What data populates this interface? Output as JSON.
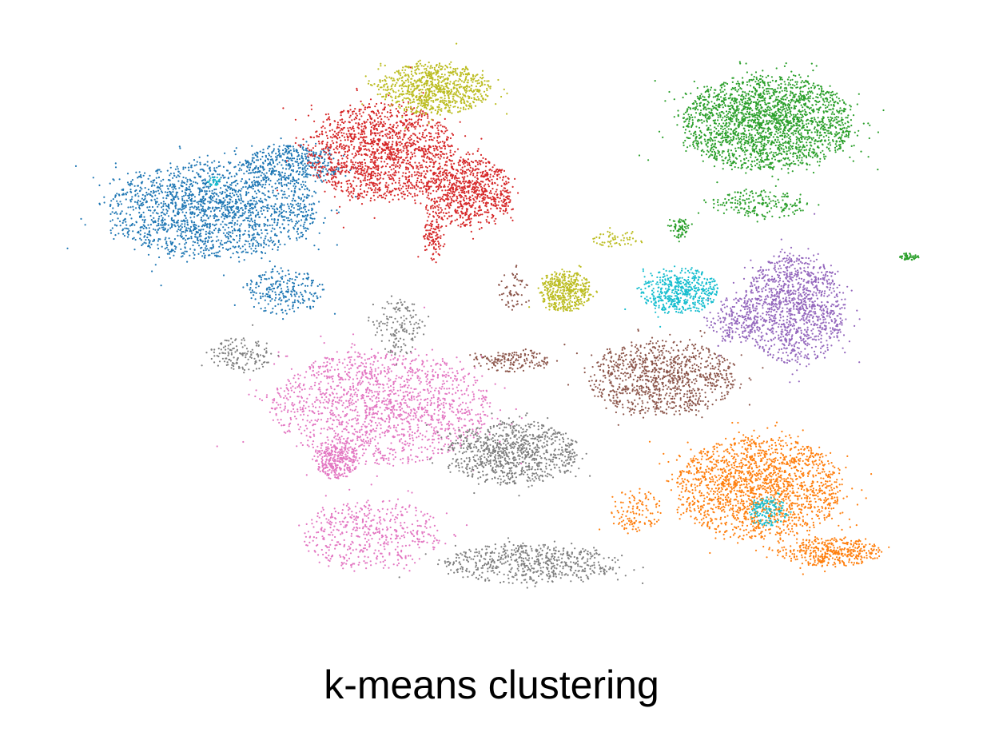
{
  "chart_data": {
    "type": "scatter",
    "title": "k-means clustering",
    "xlabel": "",
    "ylabel": "",
    "axes_visible": false,
    "grid": false,
    "legend": "none",
    "point_size": "very small",
    "xlim": [
      0,
      100
    ],
    "ylim": [
      0,
      100
    ],
    "series": [
      {
        "color": "#1f77b4",
        "regions": [
          {
            "cx": 18,
            "cy": 72,
            "rx": 12.0,
            "ry": 8.5,
            "n": 1900
          },
          {
            "cx": 27,
            "cy": 80,
            "rx": 5.5,
            "ry": 3.5,
            "n": 380
          },
          {
            "cx": 26,
            "cy": 58,
            "rx": 4.5,
            "ry": 4.0,
            "n": 240
          }
        ]
      },
      {
        "color": "#ff7f0e",
        "regions": [
          {
            "cx": 80,
            "cy": 24,
            "rx": 9.5,
            "ry": 9.0,
            "n": 1800
          },
          {
            "cx": 88,
            "cy": 13,
            "rx": 6.0,
            "ry": 2.5,
            "n": 400
          },
          {
            "cx": 66,
            "cy": 20,
            "rx": 3.0,
            "ry": 4.0,
            "n": 120
          }
        ]
      },
      {
        "color": "#2ca02c",
        "regions": [
          {
            "cx": 81,
            "cy": 87,
            "rx": 9.8,
            "ry": 8.2,
            "n": 2300
          },
          {
            "cx": 80,
            "cy": 73,
            "rx": 5.5,
            "ry": 2.5,
            "n": 200
          },
          {
            "cx": 71,
            "cy": 69,
            "rx": 1.2,
            "ry": 1.8,
            "n": 70
          },
          {
            "cx": 97,
            "cy": 64,
            "rx": 1.2,
            "ry": 0.6,
            "n": 45
          }
        ]
      },
      {
        "color": "#d62728",
        "regions": [
          {
            "cx": 37,
            "cy": 82,
            "rx": 8.5,
            "ry": 8.5,
            "n": 1500
          },
          {
            "cx": 47,
            "cy": 75,
            "rx": 5.0,
            "ry": 6.0,
            "n": 800
          },
          {
            "cx": 43,
            "cy": 67,
            "rx": 1.2,
            "ry": 4.5,
            "n": 110
          }
        ]
      },
      {
        "color": "#9467bd",
        "regions": [
          {
            "cx": 84,
            "cy": 55,
            "rx": 5.8,
            "ry": 9.5,
            "n": 1200
          },
          {
            "cx": 77,
            "cy": 53,
            "rx": 3.0,
            "ry": 4.0,
            "n": 180
          }
        ]
      },
      {
        "color": "#8c564b",
        "regions": [
          {
            "cx": 69,
            "cy": 43,
            "rx": 8.5,
            "ry": 6.5,
            "n": 1000
          },
          {
            "cx": 52,
            "cy": 46,
            "rx": 4.5,
            "ry": 2.0,
            "n": 160
          },
          {
            "cx": 52,
            "cy": 58,
            "rx": 1.8,
            "ry": 3.5,
            "n": 60
          }
        ]
      },
      {
        "color": "#e377c2",
        "regions": [
          {
            "cx": 37,
            "cy": 38,
            "rx": 12.5,
            "ry": 10.0,
            "n": 1600
          },
          {
            "cx": 32,
            "cy": 29,
            "rx": 2.5,
            "ry": 3.5,
            "n": 300
          },
          {
            "cx": 36,
            "cy": 16,
            "rx": 8.0,
            "ry": 6.0,
            "n": 500
          }
        ]
      },
      {
        "color": "#7f7f7f",
        "regions": [
          {
            "cx": 52,
            "cy": 30,
            "rx": 7.5,
            "ry": 5.5,
            "n": 900
          },
          {
            "cx": 54,
            "cy": 11,
            "rx": 10.0,
            "ry": 3.5,
            "n": 600
          },
          {
            "cx": 21,
            "cy": 47,
            "rx": 3.5,
            "ry": 3.0,
            "n": 150
          },
          {
            "cx": 39,
            "cy": 52,
            "rx": 3.0,
            "ry": 5.0,
            "n": 150
          }
        ]
      },
      {
        "color": "#bcbd22",
        "regions": [
          {
            "cx": 43,
            "cy": 93,
            "rx": 6.5,
            "ry": 4.5,
            "n": 850
          },
          {
            "cx": 58,
            "cy": 58,
            "rx": 3.0,
            "ry": 3.5,
            "n": 450
          },
          {
            "cx": 64,
            "cy": 67,
            "rx": 3.0,
            "ry": 1.5,
            "n": 60
          }
        ]
      },
      {
        "color": "#17becf",
        "regions": [
          {
            "cx": 71,
            "cy": 58,
            "rx": 4.5,
            "ry": 4.0,
            "n": 500
          },
          {
            "cx": 81,
            "cy": 20,
            "rx": 2.2,
            "ry": 2.5,
            "n": 140
          },
          {
            "cx": 18,
            "cy": 77,
            "rx": 0.8,
            "ry": 0.8,
            "n": 25
          }
        ]
      }
    ]
  }
}
